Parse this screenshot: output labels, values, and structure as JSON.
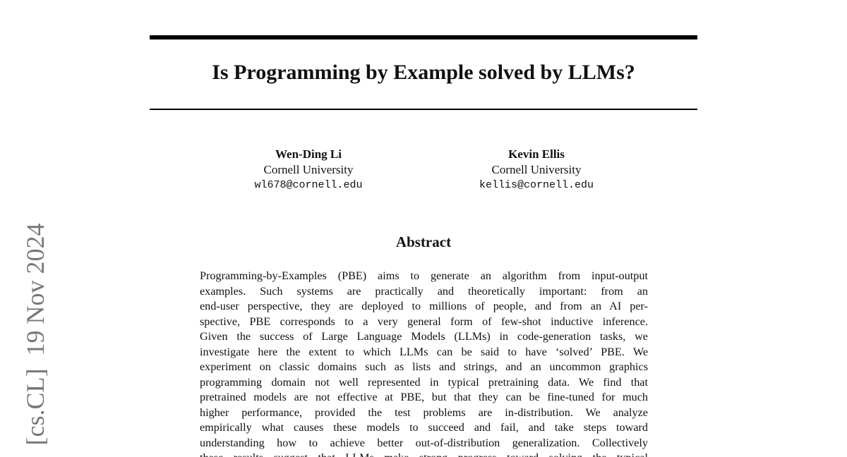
{
  "header": {
    "title": "Is Programming by Example solved by LLMs?",
    "side_stamp": "[cs.CL]  19 Nov 2024"
  },
  "authors": [
    {
      "name": "Wen-Ding Li",
      "affiliation": "Cornell University",
      "email": "wl678@cornell.edu"
    },
    {
      "name": "Kevin Ellis",
      "affiliation": "Cornell University",
      "email": "kellis@cornell.edu"
    }
  ],
  "abstract": {
    "heading": "Abstract",
    "lines": [
      "Programming-by-Examples (PBE) aims to generate an algorithm from input-output",
      "examples. Such systems are practically and theoretically important: from an",
      "end-user perspective, they are deployed to millions of people, and from an AI per-",
      "spective, PBE corresponds to a very general form of few-shot inductive inference.",
      "Given the success of Large Language Models (LLMs) in code-generation tasks, we",
      "investigate here the extent to which LLMs can be said to have ‘solved’ PBE. We",
      "experiment on classic domains such as lists and strings, and an uncommon graphics",
      "programming domain not well represented in typical pretraining data. We find that",
      "pretrained models are not effective at PBE, but that they can be fine-tuned for much",
      "higher performance, provided the test problems are in-distribution. We analyze",
      "empirically what causes these models to succeed and fail, and take steps toward",
      "understanding how to achieve better out-of-distribution generalization. Collectively",
      "these results suggest that LLMs make strong progress toward solving the typical"
    ]
  }
}
